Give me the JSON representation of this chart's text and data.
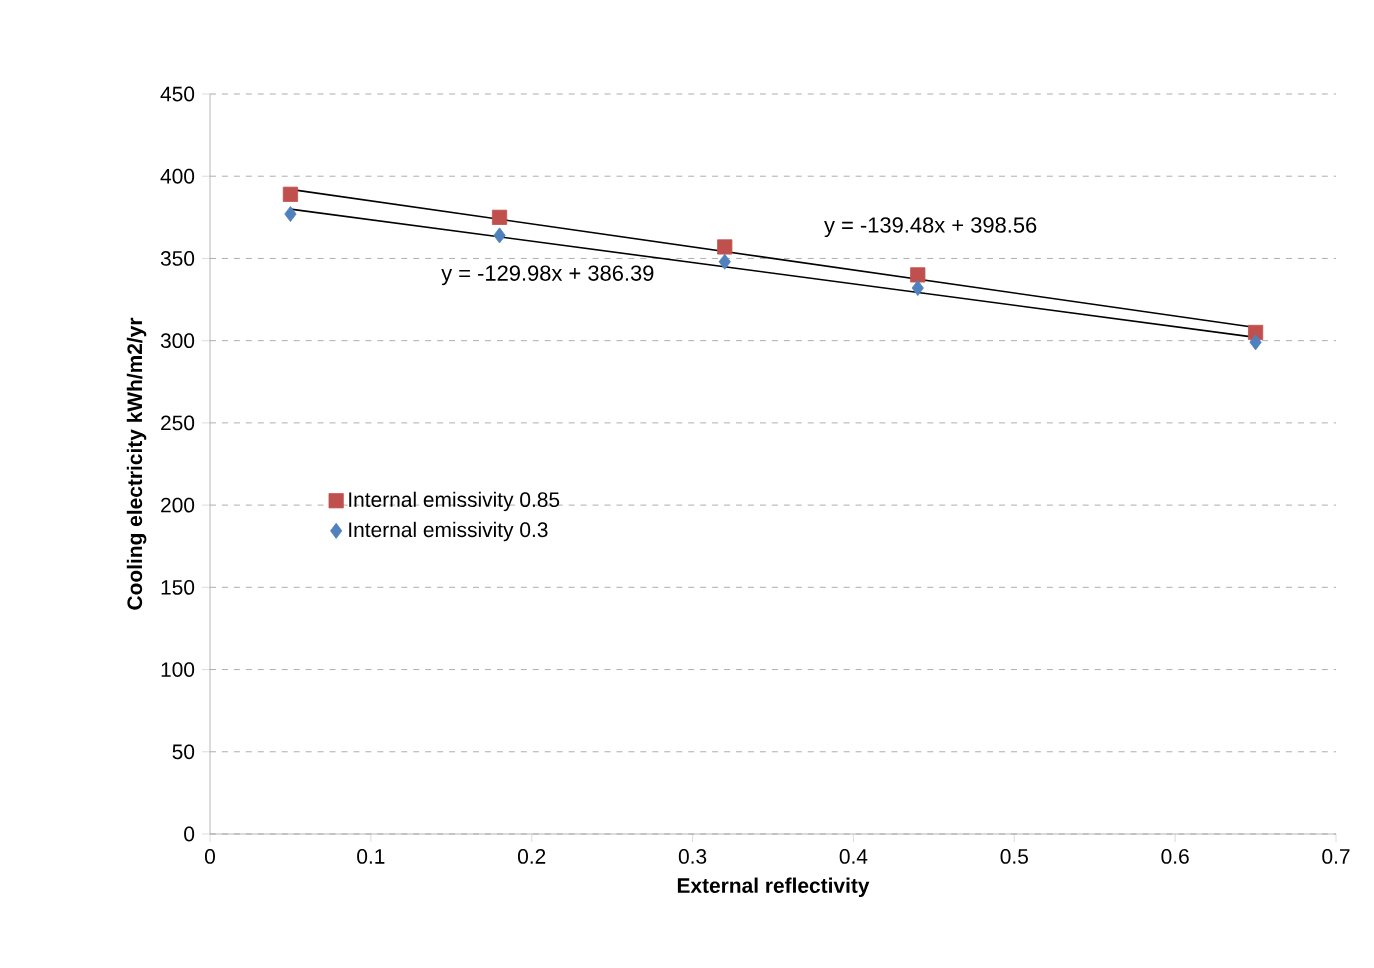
{
  "chart_data": {
    "type": "scatter",
    "xlabel": "External reflectivity",
    "ylabel": "Cooling electricity kWh/m2/yr",
    "xlim": [
      0,
      0.7
    ],
    "xticks": [
      0,
      0.1,
      0.2,
      0.3,
      0.4,
      0.5,
      0.6,
      0.7
    ],
    "ylim": [
      0,
      450
    ],
    "yticks": [
      0,
      50,
      100,
      150,
      200,
      250,
      300,
      350,
      400,
      450
    ],
    "grid": "y",
    "legend": "left",
    "series": [
      {
        "name": "Internal emissivity 0.85",
        "color": "#c0504d",
        "marker": "square",
        "x": [
          0.05,
          0.18,
          0.32,
          0.44,
          0.65
        ],
        "values": [
          389,
          375,
          357,
          340,
          305
        ]
      },
      {
        "name": "Internal emissivity 0.3",
        "color": "#4f81bd",
        "marker": "diamond",
        "x": [
          0.05,
          0.18,
          0.32,
          0.44,
          0.65
        ],
        "values": [
          377,
          364,
          348,
          332,
          299
        ]
      },
      {
        "type": "line",
        "color": "#000000",
        "marker": "none",
        "x": [
          0.05,
          0.65
        ],
        "values": [
          392,
          308
        ]
      },
      {
        "type": "line",
        "color": "#000000",
        "marker": "none",
        "x": [
          0.05,
          0.65
        ],
        "values": [
          380,
          302
        ]
      }
    ],
    "annotations": [
      "y = -139.48x + 398.56",
      "y = -129.98x + 386.39"
    ]
  }
}
